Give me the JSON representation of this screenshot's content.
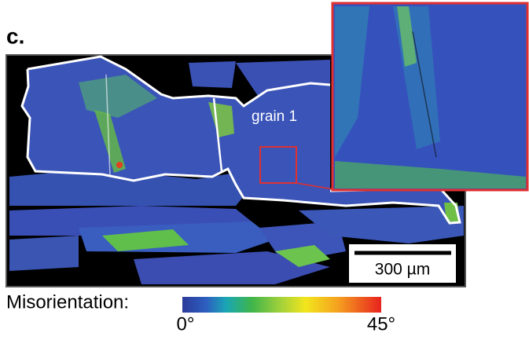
{
  "panel_label": "c.",
  "annotation": "grain 1",
  "scale_bar": "300 µm",
  "colorbar": {
    "label": "Misorientation:",
    "min_label": "0°",
    "max_label": "45°"
  }
}
